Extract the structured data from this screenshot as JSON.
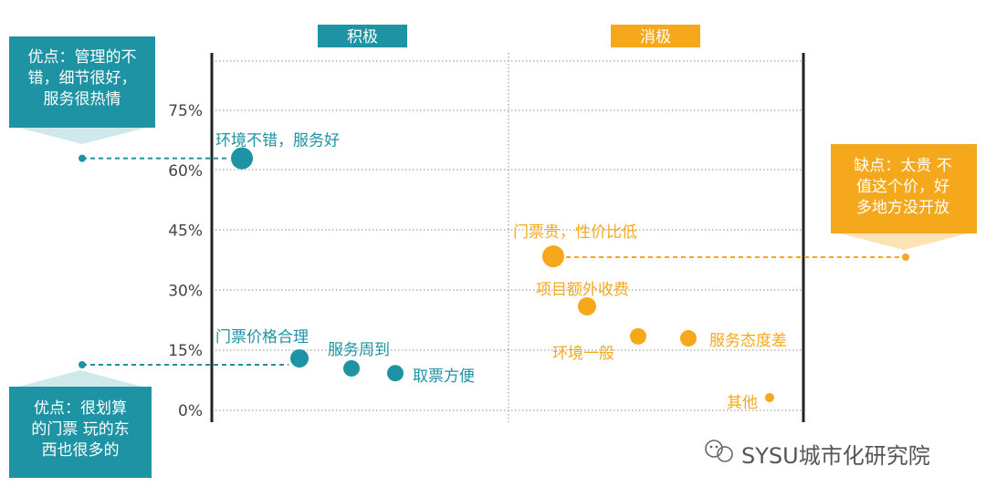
{
  "chart_data": {
    "type": "scatter",
    "ylim": [
      0,
      85
    ],
    "y_ticks": [
      0,
      15,
      30,
      45,
      60,
      75
    ],
    "y_tick_labels": [
      "0%",
      "15%",
      "30%",
      "45%",
      "60%",
      "75%"
    ],
    "columns": [
      {
        "label": "积极",
        "color": "#1e93a3"
      },
      {
        "label": "消极",
        "color": "#f5a81c"
      }
    ],
    "series": [
      {
        "group": "积极",
        "color": "#1e93a3",
        "points": [
          {
            "label": "环境不错，服务好",
            "y": 63
          },
          {
            "label": "门票价格合理",
            "y": 13
          },
          {
            "label": "服务周到",
            "y": 10.5
          },
          {
            "label": "取票方便",
            "y": 9.3
          }
        ]
      },
      {
        "group": "消极",
        "color": "#f5a81c",
        "points": [
          {
            "label": "门票贵，性价比低",
            "y": 38.5
          },
          {
            "label": "项目额外收费",
            "y": 26
          },
          {
            "label": "环境一般",
            "y": 18.5
          },
          {
            "label": "服务态度差",
            "y": 18
          },
          {
            "label": "其他",
            "y": 3.2
          }
        ]
      }
    ]
  },
  "callouts": {
    "top_left": {
      "lines": [
        "优点：管理的不",
        "错，细节很好，",
        "服务很热情"
      ]
    },
    "bottom_left": {
      "lines": [
        "优点：很划算",
        "的门票 玩的东",
        "西也很多的"
      ]
    },
    "right": {
      "lines": [
        "缺点：太贵 不",
        "值这个价，好",
        "多地方没开放"
      ]
    }
  },
  "watermark": "SYSU城市化研究院",
  "colors": {
    "teal": "#1e93a3",
    "orange": "#f5a81c"
  }
}
